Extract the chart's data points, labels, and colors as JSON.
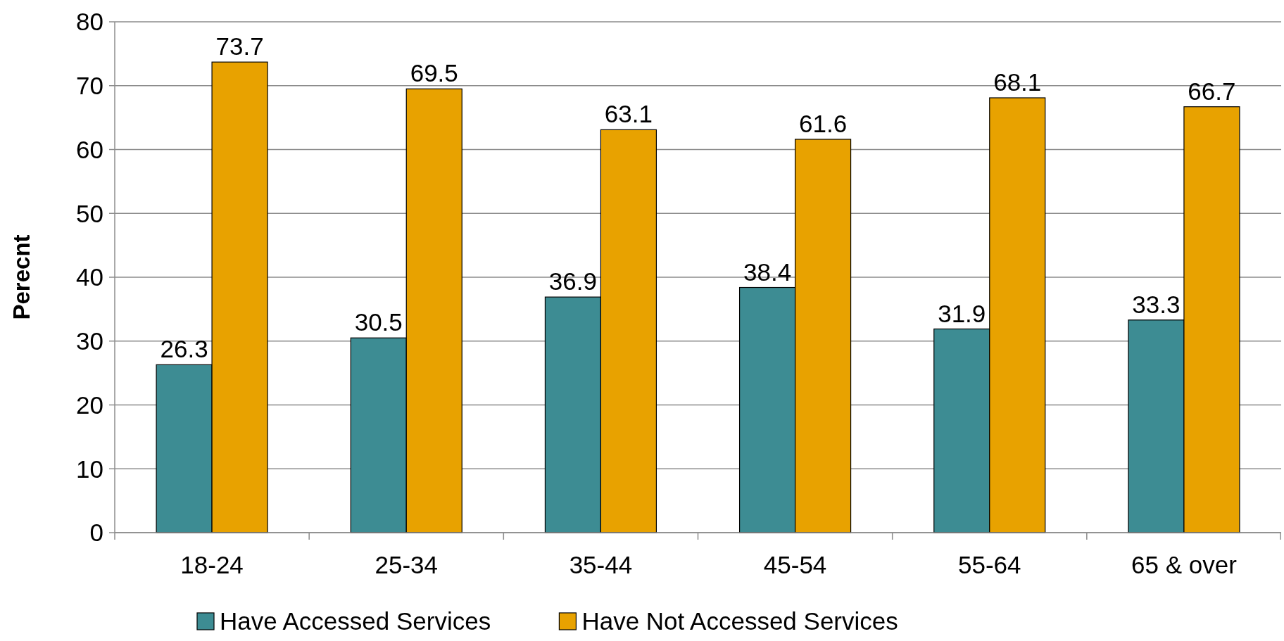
{
  "chart_data": {
    "type": "bar",
    "ylabel": "Perecnt",
    "categories": [
      "18-24",
      "25-34",
      "35-44",
      "45-54",
      "55-64",
      "65 & over"
    ],
    "series": [
      {
        "name": "Have Accessed Services",
        "color": "#3d8c93",
        "values": [
          26.3,
          30.5,
          36.9,
          38.4,
          31.9,
          33.3
        ]
      },
      {
        "name": "Have Not Accessed Services",
        "color": "#e8a200",
        "values": [
          73.7,
          69.5,
          63.1,
          61.6,
          68.1,
          66.7
        ]
      }
    ],
    "ylim": [
      0,
      80
    ],
    "yticks": [
      0,
      10,
      20,
      30,
      40,
      50,
      60,
      70,
      80
    ],
    "grid": "y",
    "legend": "bottom",
    "data_labels": true
  }
}
